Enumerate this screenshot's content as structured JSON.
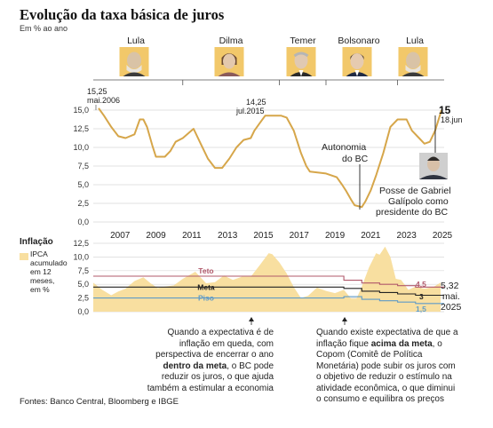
{
  "title": "Evolução da taxa básica de juros",
  "subtitle": "Em % ao ano",
  "presidents": [
    {
      "name": "Lula",
      "icon": "lula-portrait"
    },
    {
      "name": "Dilma",
      "icon": "dilma-portrait"
    },
    {
      "name": "Temer",
      "icon": "temer-portrait"
    },
    {
      "name": "Bolsonaro",
      "icon": "bolsonaro-portrait"
    },
    {
      "name": "Lula",
      "icon": "lula-portrait"
    }
  ],
  "colors": {
    "selic": "#d6a64a",
    "ipca_fill": "#f8dfa0",
    "teto": "#b0586a",
    "meta": "#222222",
    "piso": "#5f9bc7",
    "portrait_bg": "#f2c86a"
  },
  "chart_data": [
    {
      "type": "line",
      "name": "Taxa Selic",
      "xlabel": "",
      "ylabel": "",
      "ylim": [
        0,
        15
      ],
      "yticks": [
        "15,0",
        "12,5",
        "10,0",
        "7,5",
        "5,0",
        "2,5",
        "0,0"
      ],
      "ytick_values": [
        15,
        12.5,
        10,
        7.5,
        5,
        2.5,
        0
      ],
      "xticks": [
        "2007",
        "2009",
        "2011",
        "2013",
        "2015",
        "2017",
        "2019",
        "2021",
        "2023",
        "2025"
      ],
      "xlim": [
        2006.0,
        2025.6
      ],
      "grid": true,
      "series": [
        {
          "x": [
            2006.3,
            2006.6,
            2007.0,
            2007.4,
            2007.8,
            2008.3,
            2008.6,
            2008.8,
            2009.0,
            2009.3,
            2009.5,
            2010.0,
            2010.3,
            2010.6,
            2011.0,
            2011.6,
            2012.0,
            2012.4,
            2012.8,
            2013.2,
            2013.6,
            2014.0,
            2014.4,
            2014.8,
            2015.0,
            2015.3,
            2015.6,
            2016.0,
            2016.5,
            2016.8,
            2017.2,
            2017.6,
            2017.9,
            2018.1,
            2019.0,
            2019.6,
            2019.9,
            2020.1,
            2020.4,
            2020.6,
            2021.0,
            2021.2,
            2021.5,
            2021.8,
            2022.2,
            2022.6,
            2023.0,
            2023.5,
            2023.8,
            2024.2,
            2024.5,
            2024.8,
            2025.1,
            2025.45
          ],
          "y": [
            15.25,
            14.25,
            12.75,
            11.5,
            11.25,
            11.75,
            13.75,
            13.75,
            12.75,
            10.25,
            8.75,
            8.75,
            9.5,
            10.75,
            11.25,
            12.5,
            10.5,
            8.5,
            7.25,
            7.25,
            8.5,
            10.0,
            11.0,
            11.25,
            12.25,
            13.25,
            14.25,
            14.25,
            14.25,
            14.0,
            12.25,
            9.25,
            7.5,
            6.75,
            6.5,
            6.0,
            5.0,
            4.25,
            3.0,
            2.25,
            2.0,
            2.75,
            4.25,
            6.25,
            9.25,
            12.75,
            13.75,
            13.75,
            12.25,
            11.25,
            10.5,
            10.75,
            12.25,
            15.0
          ]
        }
      ],
      "annotations": [
        {
          "text": "15,25",
          "x": 2006.3,
          "y": 15.25
        },
        {
          "text": "mai.2006",
          "x": 2006.3,
          "y": 15.25
        },
        {
          "text": "14,25",
          "x": 2015.6,
          "y": 14.25
        },
        {
          "text": "jul.2015",
          "x": 2015.6,
          "y": 14.25
        },
        {
          "text": "15",
          "x": 2025.45,
          "y": 15.0
        },
        {
          "text": "18.jun",
          "x": 2025.45,
          "y": 15.0
        },
        {
          "text": "Autonomia",
          "x": 2021.1
        },
        {
          "text": "do BC",
          "x": 2021.1
        },
        {
          "text": "Posse de Gabriel",
          "x": 2025.0
        },
        {
          "text": "Galípolo como",
          "x": 2025.0
        },
        {
          "text": "presidente do BC",
          "x": 2025.0
        }
      ]
    },
    {
      "type": "area",
      "title": "Inflação",
      "legend": [
        "IPCA",
        "acumulado",
        "em 12",
        "meses,",
        "em %"
      ],
      "ylim": [
        0,
        12.5
      ],
      "yticks": [
        "12,5",
        "10,0",
        "7,5",
        "5,0",
        "2,5",
        "0,0"
      ],
      "ytick_values": [
        12.5,
        10,
        7.5,
        5,
        2.5,
        0
      ],
      "xlim": [
        2006.0,
        2025.6
      ],
      "series": [
        {
          "name": "IPCA",
          "x": [
            2006.0,
            2006.5,
            2007.0,
            2007.4,
            2007.8,
            2008.3,
            2008.8,
            2009.2,
            2009.6,
            2010.0,
            2010.5,
            2011.0,
            2011.7,
            2012.3,
            2012.8,
            2013.3,
            2013.8,
            2014.3,
            2014.8,
            2015.3,
            2015.8,
            2016.0,
            2016.4,
            2016.8,
            2017.2,
            2017.6,
            2018.0,
            2018.5,
            2019.0,
            2019.5,
            2020.0,
            2020.4,
            2020.7,
            2021.0,
            2021.4,
            2021.8,
            2022.0,
            2022.3,
            2022.6,
            2022.9,
            2023.2,
            2023.6,
            2024.0,
            2024.5,
            2025.0,
            2025.4
          ],
          "values": [
            5.3,
            4.0,
            3.0,
            3.7,
            4.2,
            5.6,
            6.3,
            5.2,
            4.3,
            4.6,
            4.8,
            6.0,
            7.3,
            5.2,
            5.4,
            6.6,
            5.8,
            6.4,
            6.4,
            8.5,
            10.7,
            10.5,
            9.0,
            7.0,
            4.5,
            2.5,
            2.9,
            4.4,
            3.8,
            3.4,
            4.0,
            2.4,
            2.4,
            4.6,
            8.1,
            10.7,
            10.4,
            11.9,
            10.0,
            6.0,
            5.8,
            4.0,
            4.6,
            4.2,
            4.5,
            5.32
          ]
        },
        {
          "name": "Teto",
          "x": [
            2006.0,
            2019.0,
            2020.0,
            2021.0,
            2022.0,
            2023.0,
            2024.0,
            2025.0,
            2025.6
          ],
          "values": [
            6.5,
            6.5,
            5.75,
            5.25,
            5.0,
            4.75,
            4.5,
            4.5,
            4.5
          ]
        },
        {
          "name": "Meta",
          "x": [
            2006.0,
            2019.0,
            2020.0,
            2021.0,
            2022.0,
            2023.0,
            2024.0,
            2025.6
          ],
          "values": [
            4.5,
            4.5,
            4.25,
            3.75,
            3.5,
            3.25,
            3.0,
            3.0
          ]
        },
        {
          "name": "Piso",
          "x": [
            2006.0,
            2019.0,
            2020.0,
            2021.0,
            2022.0,
            2023.0,
            2024.0,
            2025.6
          ],
          "values": [
            2.5,
            2.5,
            2.75,
            2.25,
            2.0,
            1.75,
            1.5,
            1.5
          ]
        }
      ],
      "annotations": [
        {
          "text": "4,5",
          "series": "Teto"
        },
        {
          "text": "3",
          "series": "Meta"
        },
        {
          "text": "1,5",
          "series": "Piso"
        },
        {
          "text": "5,32",
          "series": "IPCA"
        },
        {
          "text": "mai.",
          "series": "IPCA"
        },
        {
          "text": "2025",
          "series": "IPCA"
        }
      ]
    }
  ],
  "notes": {
    "left": {
      "lines": [
        [
          "Quando a expectativa é de"
        ],
        [
          "inflação em queda, com"
        ],
        [
          "perspectiva de encerrar o ano"
        ],
        [
          "dentro da meta",
          ", o BC pode"
        ],
        [
          "reduzir os juros, o que ajuda"
        ],
        [
          "também a estimular a economia"
        ]
      ]
    },
    "right": {
      "lines": [
        [
          "Quando existe expectativa de que a"
        ],
        [
          "inflação fique ",
          "acima da meta",
          ", o"
        ],
        [
          "Copom (Comitê de Política"
        ],
        [
          "Monetária) pode subir os juros com"
        ],
        [
          "o objetivo de reduzir o estímulo na"
        ],
        [
          "atividade econômica, o que diminui"
        ],
        [
          "o consumo e equilibra os preços"
        ]
      ]
    }
  },
  "sources": "Fontes: Banco Central, Bloomberg e IBGE"
}
